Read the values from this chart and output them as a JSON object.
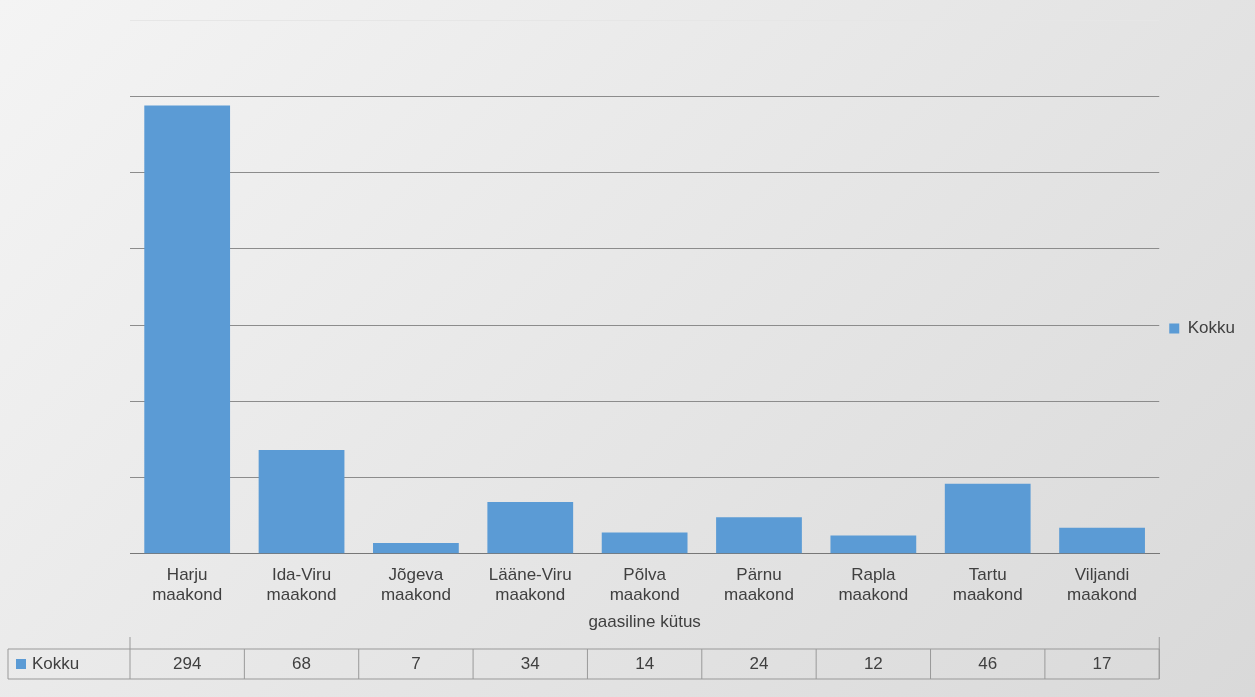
{
  "chart_data": {
    "type": "bar",
    "xlabel": "gaasiline kütus",
    "categories": [
      "Harju maakond",
      "Ida-Viru maakond",
      "Jõgeva maakond",
      "Lääne-Viru maakond",
      "Põlva maakond",
      "Pärnu maakond",
      "Rapla maakond",
      "Tartu maakond",
      "Viljandi maakond"
    ],
    "series": [
      {
        "name": "Kokku",
        "color": "#5b9bd5",
        "values": [
          294,
          68,
          7,
          34,
          14,
          24,
          12,
          46,
          17
        ]
      }
    ],
    "ylim": [
      0,
      350
    ],
    "yticks": [
      {
        "value": 0,
        "label": null
      },
      {
        "value": 50,
        "label": null
      },
      {
        "value": 100,
        "label": null
      },
      {
        "value": 150,
        "label": null
      },
      {
        "value": 200,
        "label": null
      },
      {
        "value": 250,
        "label": null
      },
      {
        "value": 300,
        "label": null
      },
      {
        "value": 350,
        "label": null
      }
    ],
    "tick_labels": "x",
    "grid": "y",
    "legend": "right",
    "data_labels": true
  }
}
